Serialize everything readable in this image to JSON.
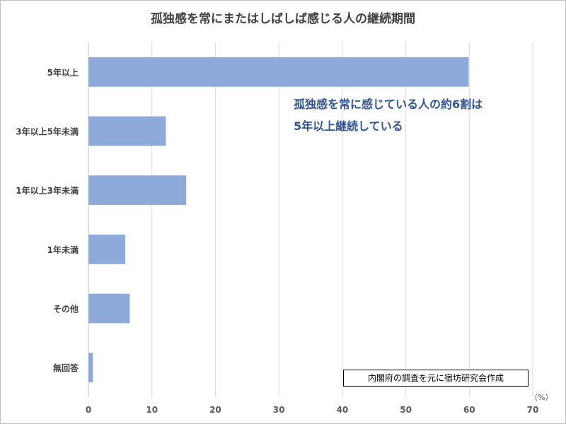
{
  "chart_data": {
    "type": "bar",
    "orientation": "horizontal",
    "title": "孤独感を常にまたはしばしば感じる人の継続期間",
    "categories": [
      "5年以上",
      "3年以上5年未満",
      "1年以上3年未満",
      "1年未満",
      "その他",
      "無回答"
    ],
    "values": [
      59.9,
      12.2,
      15.4,
      5.8,
      6.5,
      0.7
    ],
    "xlabel": "",
    "ylabel": "",
    "unit": "（%）",
    "xlim": [
      0,
      70
    ],
    "xticks": [
      "0",
      "10",
      "20",
      "30",
      "40",
      "50",
      "60",
      "70"
    ],
    "bar_color": "#8eaadb",
    "grid": true,
    "annotation_lines": [
      "孤独感を常に感じている人の約6割は",
      "5年以上継続している"
    ],
    "source_note": "内閣府の調査を元に宿坊研究会作成"
  }
}
